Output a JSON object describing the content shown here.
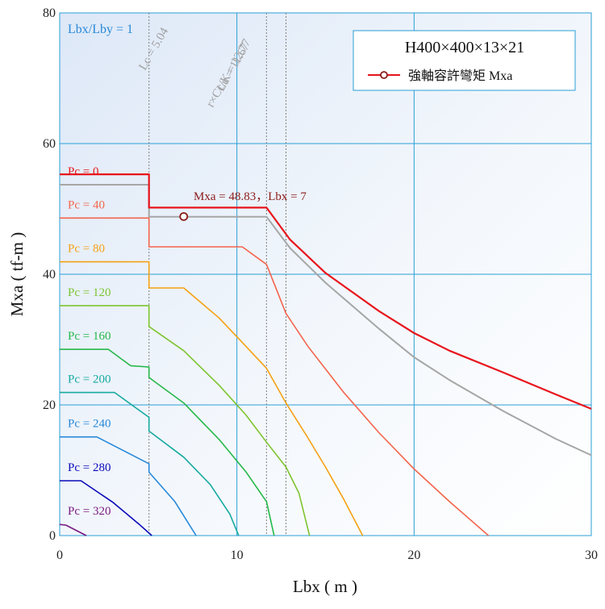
{
  "chart_data": {
    "type": "line",
    "title": "H400×400×13×21",
    "xlabel": "Lbx ( m )",
    "ylabel": "Mxa ( tf-m )",
    "xlim": [
      0,
      30
    ],
    "ylim": [
      0,
      80
    ],
    "x_ticks": [
      0,
      10,
      20,
      30
    ],
    "y_ticks": [
      0,
      20,
      40,
      60,
      80
    ],
    "grid": true,
    "legend": {
      "position": "top-right",
      "entry": "強軸容許彎矩 Mxa"
    },
    "ratio_label": "Lbx/Lby = 1",
    "vertical_markers": [
      {
        "x": 5.04,
        "label": "Lc = 5.04"
      },
      {
        "x": 11.67,
        "label": "Lu = 11.67"
      },
      {
        "x": 12.77,
        "label": "r×Cc/K = 12.77"
      }
    ],
    "highlight_point": {
      "x": 7,
      "y": 48.83,
      "label": "Mxa = 48.83，Lbx = 7"
    },
    "series": [
      {
        "name": "強軸容許彎矩 Mxa",
        "color": "#e8141c",
        "width": 2.2,
        "points": [
          [
            0,
            55.3
          ],
          [
            5.04,
            55.3
          ],
          [
            5.04,
            50.2
          ],
          [
            11.67,
            50.2
          ],
          [
            13,
            45.3
          ],
          [
            15,
            40.2
          ],
          [
            18,
            34.4
          ],
          [
            20,
            31.0
          ],
          [
            22,
            28.3
          ],
          [
            25,
            25.0
          ],
          [
            28,
            21.6
          ],
          [
            30,
            19.4
          ]
        ]
      },
      {
        "label": "Pc = 0",
        "label_color": "#e8141c",
        "color": "#a6a6a6",
        "width": 2,
        "points": [
          [
            0,
            53.7
          ],
          [
            5.04,
            53.7
          ],
          [
            5.04,
            48.8
          ],
          [
            11.67,
            48.8
          ],
          [
            13,
            44.0
          ],
          [
            15,
            38.7
          ],
          [
            18,
            31.7
          ],
          [
            20,
            27.3
          ],
          [
            22,
            23.8
          ],
          [
            25,
            19.1
          ],
          [
            28,
            14.8
          ],
          [
            30,
            12.3
          ]
        ]
      },
      {
        "label": "Pc = 40",
        "label_color": "#f4654d",
        "color": "#f4654d",
        "width": 1.6,
        "points": [
          [
            0,
            48.6
          ],
          [
            5.04,
            48.6
          ],
          [
            5.04,
            44.2
          ],
          [
            10.3,
            44.2
          ],
          [
            11.67,
            41.5
          ],
          [
            12.77,
            34.0
          ],
          [
            14,
            29.0
          ],
          [
            16,
            22.0
          ],
          [
            18,
            15.8
          ],
          [
            20,
            10.2
          ],
          [
            22,
            5.2
          ],
          [
            24.2,
            0
          ]
        ]
      },
      {
        "label": "Pc = 80",
        "label_color": "#f5a115",
        "color": "#f5a115",
        "width": 1.6,
        "points": [
          [
            0,
            41.9
          ],
          [
            5.04,
            41.9
          ],
          [
            5.04,
            37.9
          ],
          [
            7,
            37.9
          ],
          [
            9,
            33.3
          ],
          [
            10.5,
            29.0
          ],
          [
            11.67,
            25.6
          ],
          [
            12.77,
            20.3
          ],
          [
            14,
            15.0
          ],
          [
            15,
            10.5
          ],
          [
            16,
            5.7
          ],
          [
            17.1,
            0
          ]
        ]
      },
      {
        "label": "Pc = 120",
        "label_color": "#7ec430",
        "color": "#7ec430",
        "width": 1.6,
        "points": [
          [
            0,
            35.2
          ],
          [
            5.04,
            35.2
          ],
          [
            5.04,
            32.0
          ],
          [
            7,
            28.3
          ],
          [
            9,
            23.0
          ],
          [
            10.5,
            18.5
          ],
          [
            11.67,
            14.3
          ],
          [
            12.77,
            10.5
          ],
          [
            13.5,
            6.5
          ],
          [
            14.1,
            0
          ]
        ]
      },
      {
        "label": "Pc = 160",
        "label_color": "#25b84a",
        "color": "#25b84a",
        "width": 1.6,
        "points": [
          [
            0,
            28.5
          ],
          [
            2.75,
            28.5
          ],
          [
            4,
            26.0
          ],
          [
            5.04,
            25.8
          ],
          [
            5.04,
            24.2
          ],
          [
            7,
            20.3
          ],
          [
            9,
            14.7
          ],
          [
            10.5,
            9.8
          ],
          [
            11.67,
            5.2
          ],
          [
            12.1,
            0
          ]
        ]
      },
      {
        "label": "Pc = 200",
        "label_color": "#16aaa0",
        "color": "#16aaa0",
        "width": 1.6,
        "points": [
          [
            0,
            21.9
          ],
          [
            3.1,
            21.9
          ],
          [
            5.04,
            18.1
          ],
          [
            5.04,
            16.0
          ],
          [
            7,
            12.0
          ],
          [
            8.5,
            7.8
          ],
          [
            9.6,
            3.3
          ],
          [
            10.1,
            0
          ]
        ]
      },
      {
        "label": "Pc = 240",
        "label_color": "#2788d8",
        "color": "#2788d8",
        "width": 1.6,
        "points": [
          [
            0,
            15.1
          ],
          [
            2.1,
            15.1
          ],
          [
            5.04,
            11.0
          ],
          [
            5.04,
            9.7
          ],
          [
            6.5,
            5.2
          ],
          [
            7.7,
            0
          ]
        ]
      },
      {
        "label": "Pc = 280",
        "label_color": "#0a0ab8",
        "color": "#0a0ab8",
        "width": 1.6,
        "points": [
          [
            0,
            8.4
          ],
          [
            1.2,
            8.4
          ],
          [
            3,
            5.1
          ],
          [
            4.5,
            1.7
          ],
          [
            5.2,
            0
          ]
        ]
      },
      {
        "label": "Pc = 320",
        "label_color": "#7a1a82",
        "color": "#7a1a82",
        "width": 1.6,
        "points": [
          [
            0,
            1.7
          ],
          [
            0.35,
            1.6
          ],
          [
            1.5,
            0
          ]
        ]
      }
    ]
  }
}
